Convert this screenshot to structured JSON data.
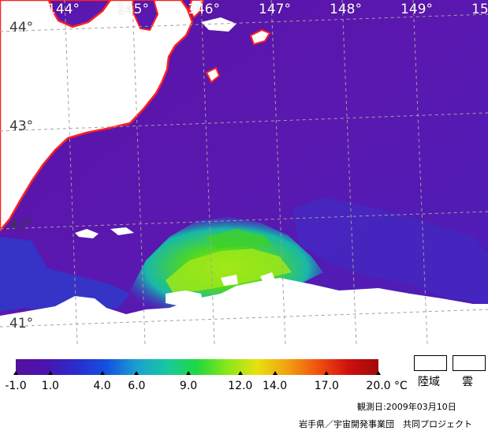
{
  "map": {
    "longitude_labels": [
      "144°",
      "145°",
      "146°",
      "147°",
      "148°",
      "149°",
      "15"
    ],
    "latitude_labels": [
      "44°",
      "43°",
      "42°",
      "41°"
    ],
    "colors": {
      "ocean_cold": "#5a10a8",
      "ocean_mid": "#3a2cc8",
      "warm_green": "#38d020",
      "warm_yellow": "#b8e818",
      "land": "#ffffff",
      "coastline": "#ff2020",
      "graticule": "#9a9a9a"
    }
  },
  "colorbar": {
    "tick_labels": [
      "-1.0",
      "1.0",
      "4.0",
      "6.0",
      "9.0",
      "12.0",
      "14.0",
      "17.0",
      "20.0"
    ],
    "tick_values": [
      -1.0,
      1.0,
      4.0,
      6.0,
      9.0,
      12.0,
      14.0,
      17.0,
      20.0
    ],
    "min": -1.0,
    "max": 20.0,
    "unit": "°C",
    "stops": [
      "#55109c",
      "#4a14b0",
      "#2a2ccc",
      "#1450e0",
      "#1aa0d0",
      "#18c8a0",
      "#20d840",
      "#8ae818",
      "#e8e010",
      "#f0a010",
      "#f05010",
      "#d01010",
      "#a00808"
    ]
  },
  "legend": {
    "land_label": "陸域",
    "cloud_label": "雲"
  },
  "footer": {
    "observation_date": "観測日:2009年03月10日",
    "credit": "岩手県／宇宙開発事業団　共同プロジェクト"
  }
}
